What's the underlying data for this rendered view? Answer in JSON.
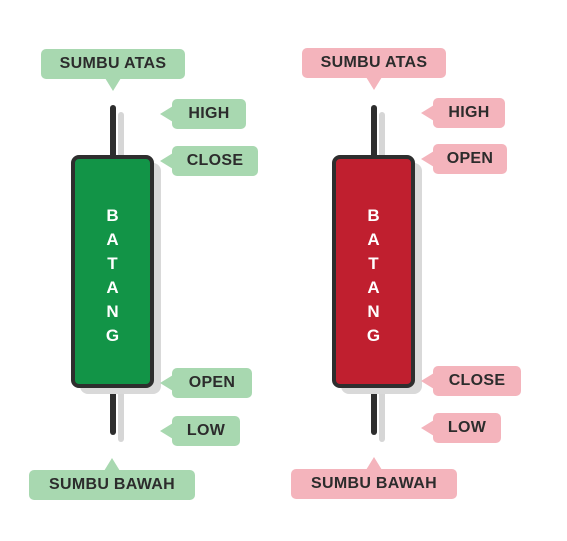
{
  "candles": [
    {
      "kind": "bullish",
      "body_color": "#129447",
      "label_color": "#a8d8b0",
      "labels": {
        "upper_wick": "SUMBU ATAS",
        "high": "HIGH",
        "top": "CLOSE",
        "bottom": "OPEN",
        "low": "LOW",
        "lower_wick": "SUMBU BAWAH"
      },
      "body_letters": [
        "B",
        "A",
        "T",
        "A",
        "N",
        "G"
      ]
    },
    {
      "kind": "bearish",
      "body_color": "#c01f2f",
      "label_color": "#f4b4bc",
      "labels": {
        "upper_wick": "SUMBU ATAS",
        "high": "HIGH",
        "top": "OPEN",
        "bottom": "CLOSE",
        "low": "LOW",
        "lower_wick": "SUMBU BAWAH"
      },
      "body_letters": [
        "B",
        "A",
        "T",
        "A",
        "N",
        "G"
      ]
    }
  ]
}
